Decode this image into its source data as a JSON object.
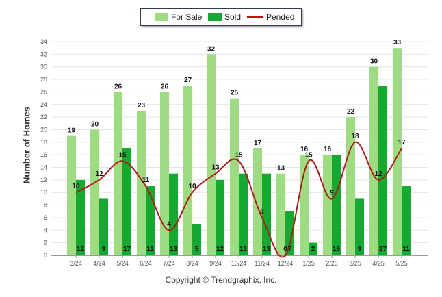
{
  "legend": {
    "for_sale": "For Sale",
    "sold": "Sold",
    "pended": "Pended"
  },
  "footer": {
    "copyright": "Copyright © Trendgraphix, Inc."
  },
  "colors": {
    "for_sale": "#9ddc80",
    "sold": "#14a930",
    "pended": "#b81414",
    "grid": "#e4e4e4",
    "tick": "#555555",
    "label": "#111111"
  },
  "chart_data": {
    "type": "bar",
    "title": "",
    "xlabel": "",
    "ylabel": "Number of Homes",
    "ylim": [
      0,
      34
    ],
    "yticks": [
      0,
      2,
      4,
      6,
      8,
      10,
      12,
      14,
      16,
      18,
      20,
      22,
      24,
      26,
      28,
      30,
      32,
      34
    ],
    "grid": true,
    "legend_position": "top-center",
    "categories": [
      "3/24",
      "4/24",
      "5/24",
      "6/24",
      "7/24",
      "8/24",
      "9/24",
      "10/24",
      "11/24",
      "12/24",
      "1/25",
      "2/25",
      "3/25",
      "4/25",
      "5/25"
    ],
    "series": [
      {
        "name": "For Sale",
        "type": "bar",
        "values": [
          19,
          20,
          26,
          23,
          26,
          27,
          32,
          25,
          17,
          13,
          16,
          16,
          22,
          30,
          33
        ]
      },
      {
        "name": "Sold",
        "type": "bar",
        "values": [
          12,
          9,
          17,
          11,
          13,
          5,
          12,
          13,
          13,
          7,
          2,
          16,
          9,
          27,
          11
        ]
      },
      {
        "name": "Pended",
        "type": "line",
        "values": [
          10,
          12,
          15,
          11,
          4,
          10,
          13,
          15,
          6,
          0,
          15,
          9,
          18,
          12,
          17
        ]
      }
    ]
  }
}
